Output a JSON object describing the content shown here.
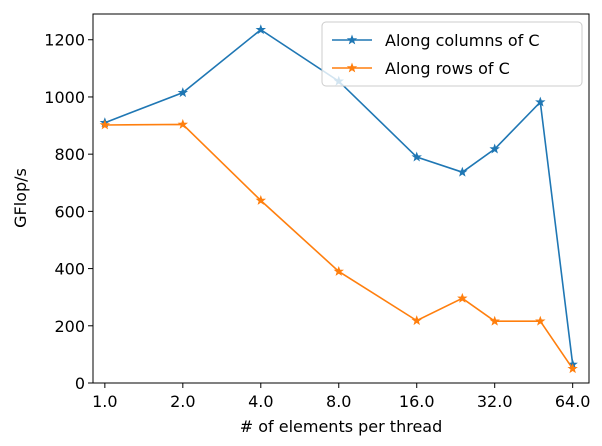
{
  "chart_data": {
    "type": "line",
    "x_scale": "log2",
    "x": [
      1.0,
      2.0,
      4.0,
      8.0,
      16.0,
      24.0,
      32.0,
      48.0,
      64.0
    ],
    "x_ticks": [
      1.0,
      2.0,
      4.0,
      8.0,
      16.0,
      32.0,
      64.0
    ],
    "x_tick_labels": [
      "1.0",
      "2.0",
      "4.0",
      "8.0",
      "16.0",
      "32.0",
      "64.0"
    ],
    "y_ticks": [
      0,
      200,
      400,
      600,
      800,
      1000,
      1200
    ],
    "y_tick_labels": [
      "0",
      "200",
      "400",
      "600",
      "800",
      "1000",
      "1200"
    ],
    "xlim": [
      0.9,
      74
    ],
    "ylim": [
      0,
      1290
    ],
    "xlabel": "# of elements per thread",
    "ylabel": "GFlop/s",
    "grid": false,
    "legend_position": "top-right",
    "series": [
      {
        "name": "Along columns of C",
        "color": "#1f77b4",
        "marker": "star",
        "values": [
          910,
          1015,
          1235,
          1055,
          790,
          737,
          818,
          982,
          65
        ]
      },
      {
        "name": "Along rows of C",
        "color": "#ff7f0e",
        "marker": "star",
        "values": [
          902,
          904,
          638,
          390,
          218,
          296,
          216,
          216,
          50
        ]
      }
    ]
  }
}
